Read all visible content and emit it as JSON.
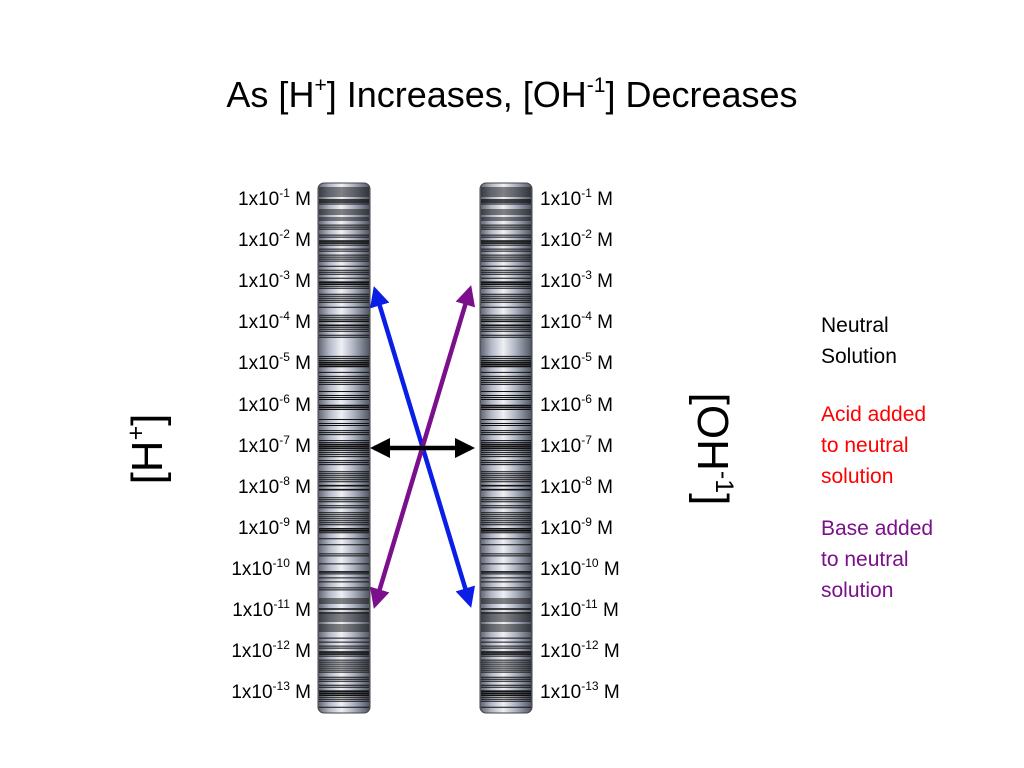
{
  "title": {
    "part1": "As [H",
    "sup1": "+",
    "part2": "] Increases, [OH",
    "sup2": "-1",
    "part3": "] Decreases"
  },
  "h_axis": {
    "base": "[H",
    "sup": "+",
    "close": "]"
  },
  "oh_axis": {
    "base": "[OH",
    "sup": "-1",
    "close": "]"
  },
  "scale": {
    "prefix": "1x10",
    "unit": "M",
    "exponents": [
      "-1",
      "-2",
      "-3",
      "-4",
      "-5",
      "-6",
      "-7",
      "-8",
      "-9",
      "-10",
      "-11",
      "-12",
      "-13"
    ]
  },
  "legend": {
    "neutral": {
      "line1": "Neutral",
      "line2": "Solution",
      "color": "#000000"
    },
    "acid": {
      "line1": "Acid added",
      "line2": "to neutral",
      "line3": "solution",
      "color": "#ff0000"
    },
    "base": {
      "line1": "Base added",
      "line2": "to neutral",
      "line3": "solution",
      "color": "#7b0f8c"
    }
  },
  "colors": {
    "acid_arrow": "#0a1ee6",
    "base_arrow": "#7b0f8c",
    "neutral_arrow": "#000000"
  }
}
